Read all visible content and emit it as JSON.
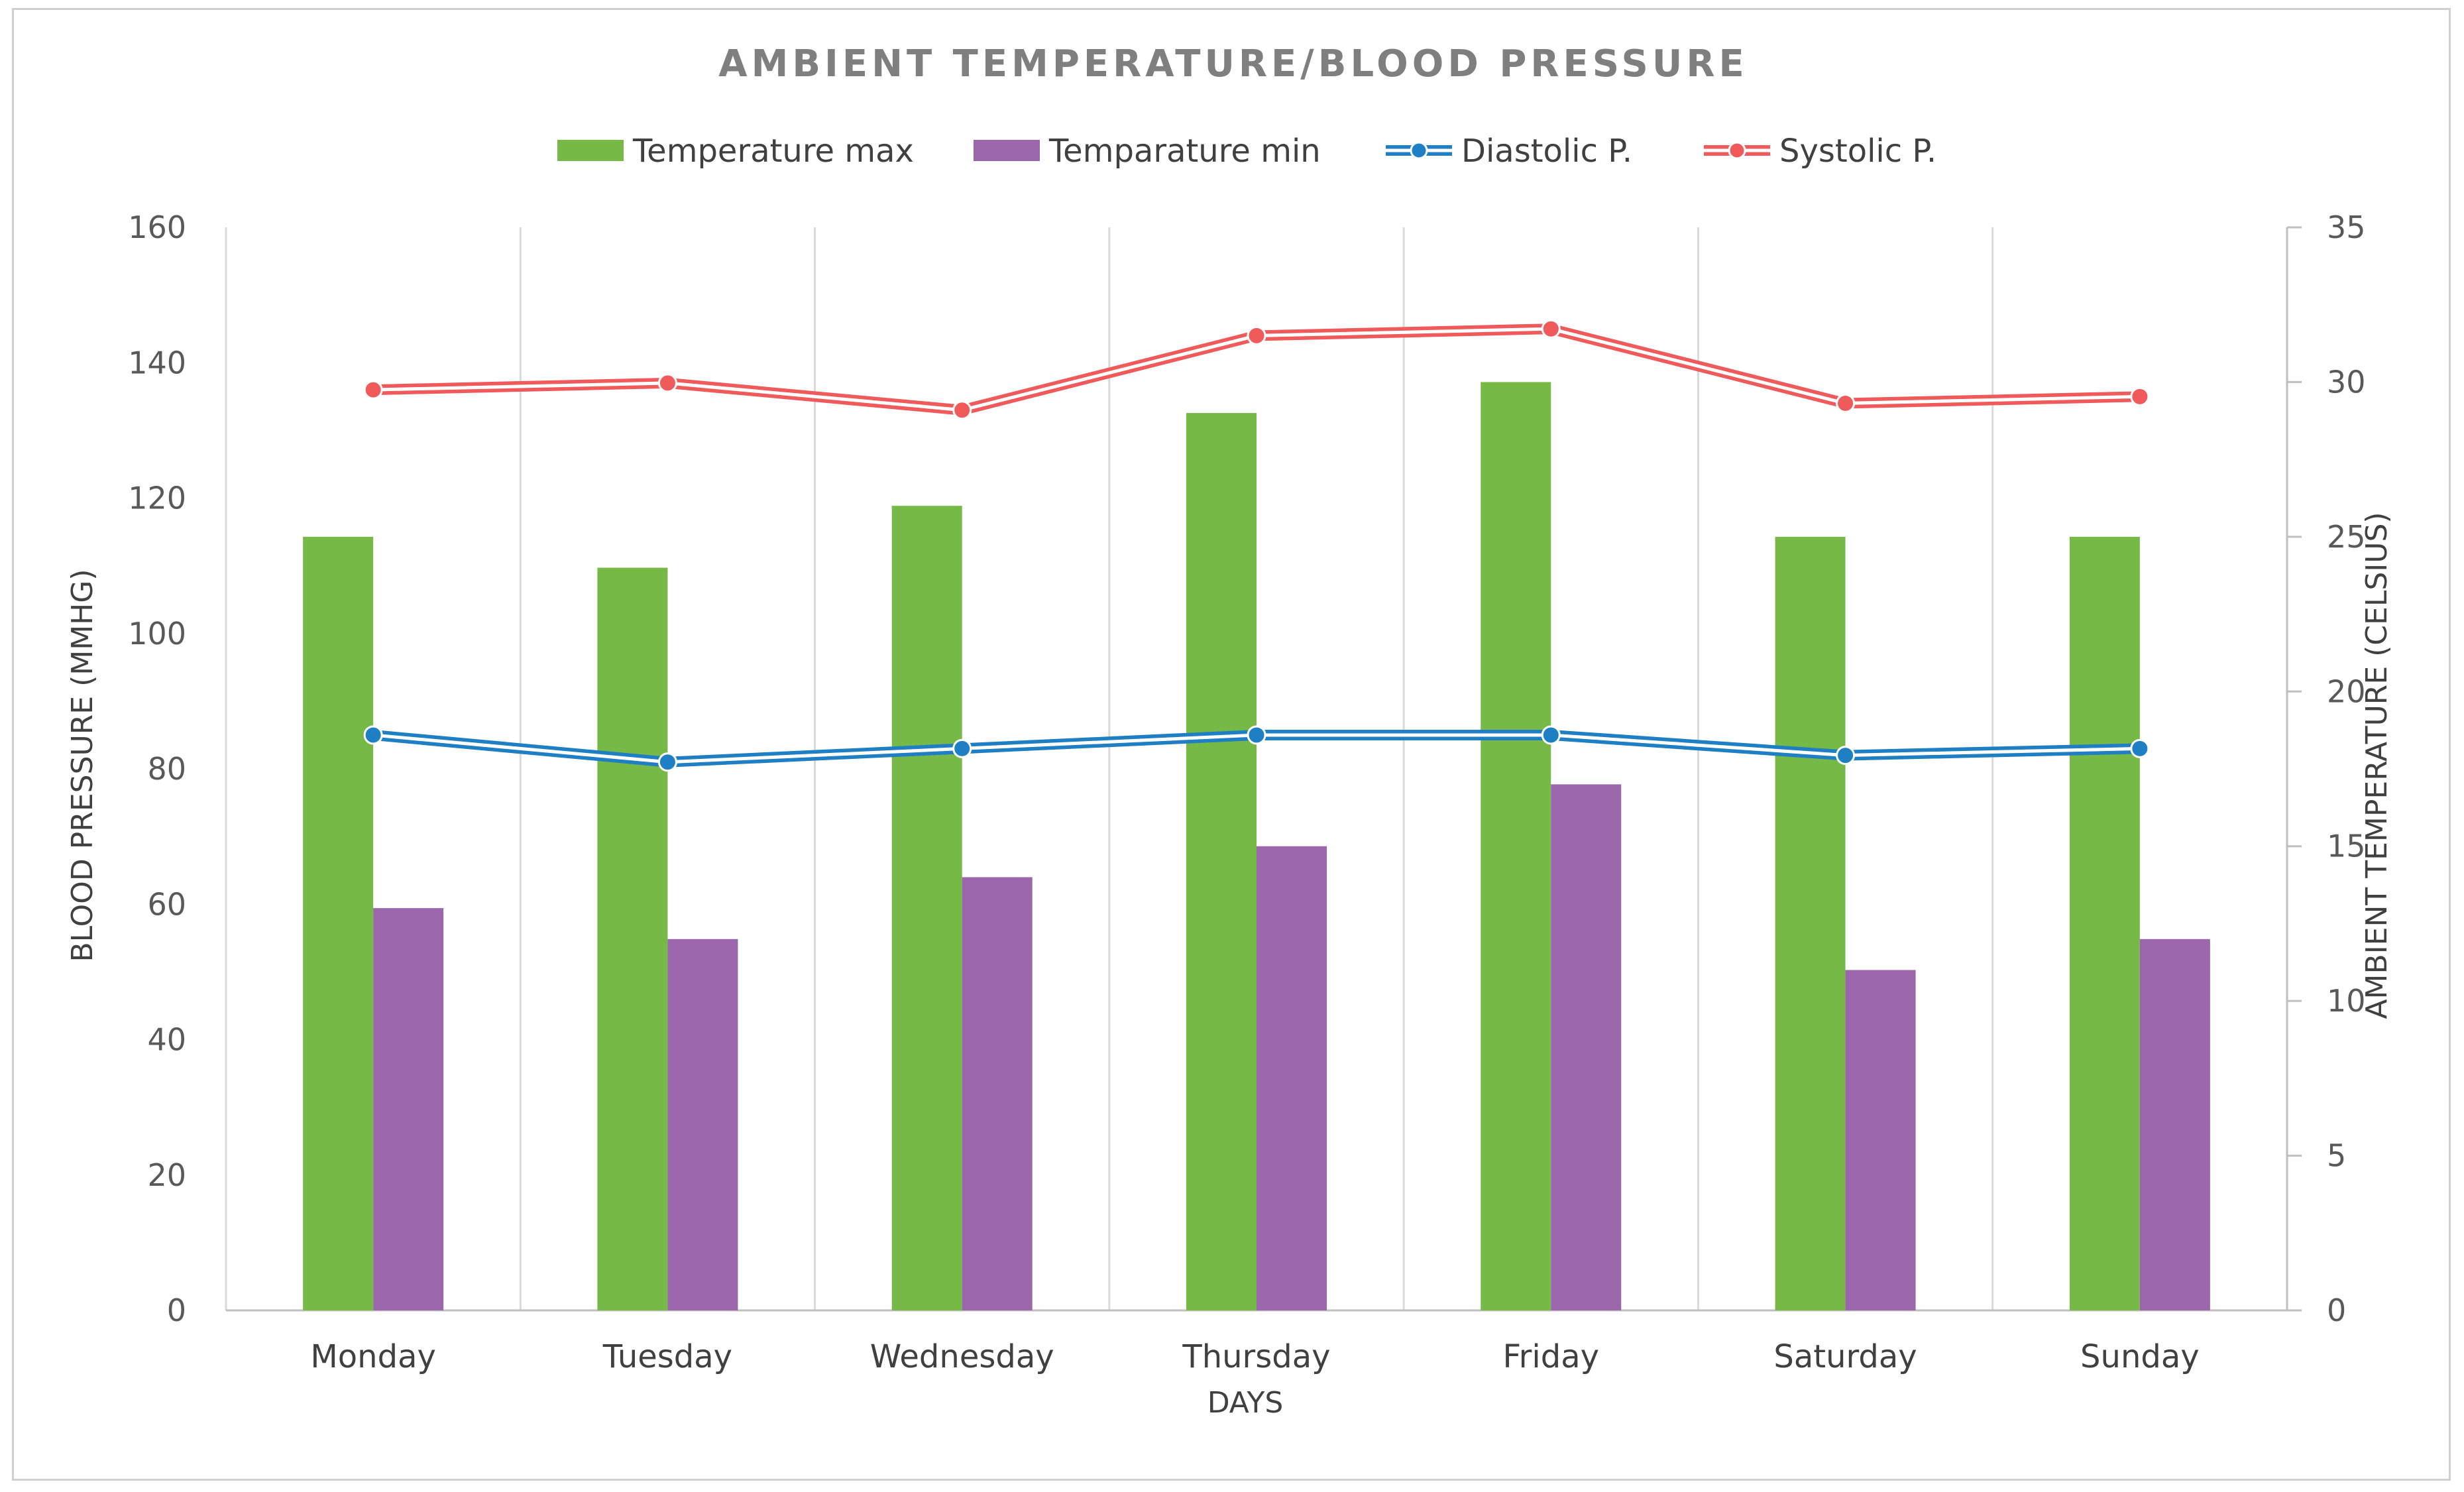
{
  "chart_data": {
    "type": "bar",
    "title": "AMBIENT TEMPERATURE/BLOOD PRESSURE",
    "xlabel": "DAYS",
    "ylabel_left": "BLOOD PRESSURE (MMHG)",
    "ylabel_right": "AMBIENT TEMPERATURE (CELSIUS)",
    "categories": [
      "Monday",
      "Tuesday",
      "Wednesday",
      "Thursday",
      "Friday",
      "Saturday",
      "Sunday"
    ],
    "ylim_left": [
      0,
      160
    ],
    "yticks_left": [
      0,
      20,
      40,
      60,
      80,
      100,
      120,
      140,
      160
    ],
    "ylim_right": [
      0,
      35
    ],
    "yticks_right": [
      0,
      5,
      10,
      15,
      20,
      25,
      30,
      35
    ],
    "grid": "vertical",
    "legend_position": "top",
    "series": [
      {
        "name": "Temperature max",
        "kind": "bar",
        "axis": "right",
        "color": "#76b947",
        "values": [
          25,
          24,
          26,
          29,
          30,
          25,
          25
        ]
      },
      {
        "name": "Temparature min",
        "kind": "bar",
        "axis": "right",
        "color": "#9b66ab",
        "values": [
          13,
          12,
          14,
          15,
          17,
          11,
          12
        ]
      },
      {
        "name": "Diastolic P.",
        "kind": "line",
        "axis": "left",
        "color": "#1f7fc4",
        "values": [
          85,
          81,
          83,
          85,
          85,
          82,
          83
        ]
      },
      {
        "name": "Systolic P.",
        "kind": "line",
        "axis": "left",
        "color": "#f05a5a",
        "values": [
          136,
          137,
          133,
          144,
          145,
          134,
          135
        ]
      }
    ]
  }
}
